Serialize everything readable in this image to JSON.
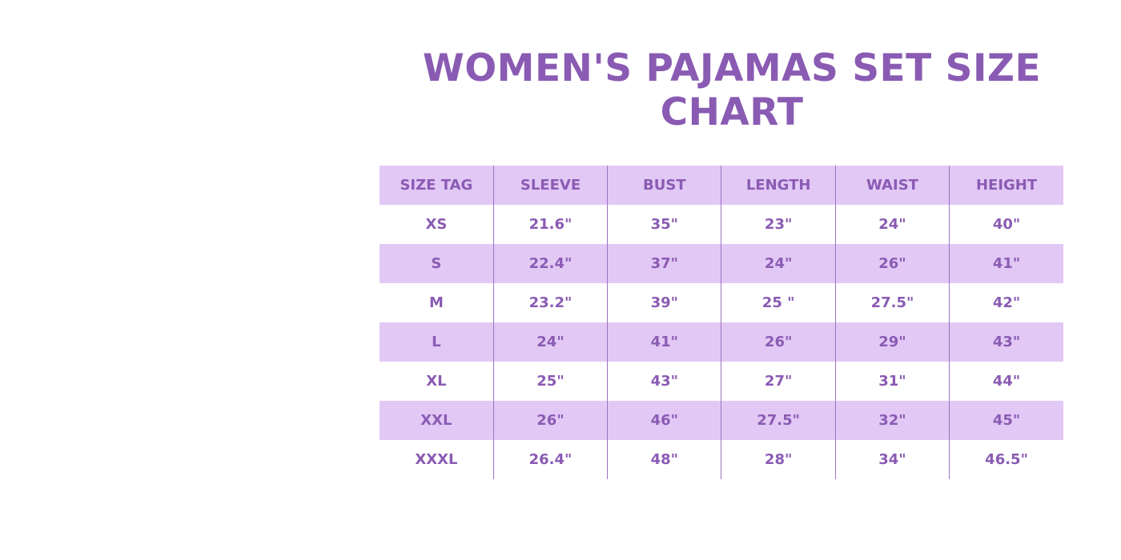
{
  "header": {
    "title": "WOMEN'S PAJAMAS SET SIZE CHART"
  },
  "table": {
    "columns": [
      "SIZE TAG",
      "SLEEVE",
      "BUST",
      "LENGTH",
      "WAIST",
      "HEIGHT"
    ],
    "rows": [
      [
        "XS",
        "21.6\"",
        "35\"",
        "23\"",
        "24\"",
        "40\""
      ],
      [
        "S",
        "22.4\"",
        "37\"",
        "24\"",
        "26\"",
        "41\""
      ],
      [
        "M",
        "23.2\"",
        "39\"",
        "25 \"",
        "27.5\"",
        "42\""
      ],
      [
        "L",
        "24\"",
        "41\"",
        "26\"",
        "29\"",
        "43\""
      ],
      [
        "XL",
        "25\"",
        "43\"",
        "27\"",
        "31\"",
        "44\""
      ],
      [
        "XXL",
        "26\"",
        "46\"",
        "27.5\"",
        "32\"",
        "45\""
      ],
      [
        "XXXL",
        "26.4\"",
        "48\"",
        "28\"",
        "34\"",
        "46.5\""
      ]
    ]
  }
}
